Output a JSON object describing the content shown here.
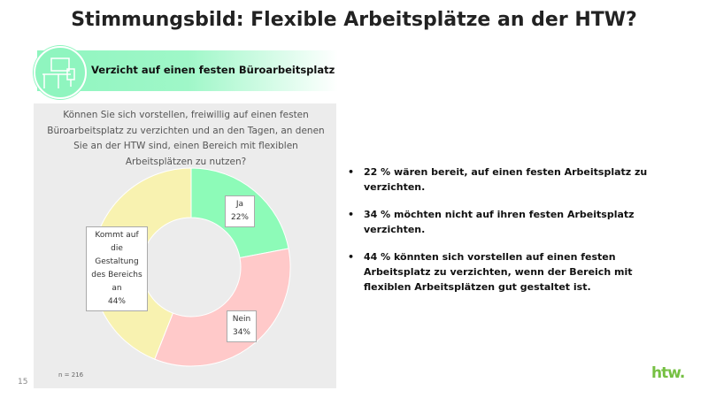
{
  "title": "Stimmungsbild: Flexible Arbeitsplätze an der HTW?",
  "banner": {
    "text": "Verzicht auf einen festen Büroarbeitsplatz",
    "icon": "desk-workplace-icon"
  },
  "chart_data": {
    "type": "pie",
    "donut": true,
    "title": "Können Sie sich vorstellen, freiwillig auf einen festen Büroarbeitsplatz zu verzichten und an den Tagen, an denen Sie an der HTW sind, einen Bereich mit flexiblen Arbeitsplätzen zu nutzen?",
    "slices": [
      {
        "name": "Ja",
        "value": 22,
        "label": "22%",
        "color": "#8dfbb8"
      },
      {
        "name": "Nein",
        "value": 34,
        "label": "34%",
        "color": "#ffc9c9"
      },
      {
        "name": "Kommt auf die Gestaltung des Bereichs an",
        "value": 44,
        "label": "44%",
        "color": "#f8f2b0"
      }
    ],
    "note": "n = 216"
  },
  "bullets": [
    "22 % wären bereit, auf einen festen Arbeitsplatz zu verzichten.",
    "34 % möchten nicht auf ihren festen Arbeitsplatz verzichten.",
    "44 % könnten sich vorstellen auf einen festen Arbeitsplatz zu verzichten, wenn der Bereich mit flexiblen Arbeitsplätzen gut gestaltet ist."
  ],
  "page_number": "15",
  "logo": "htw."
}
